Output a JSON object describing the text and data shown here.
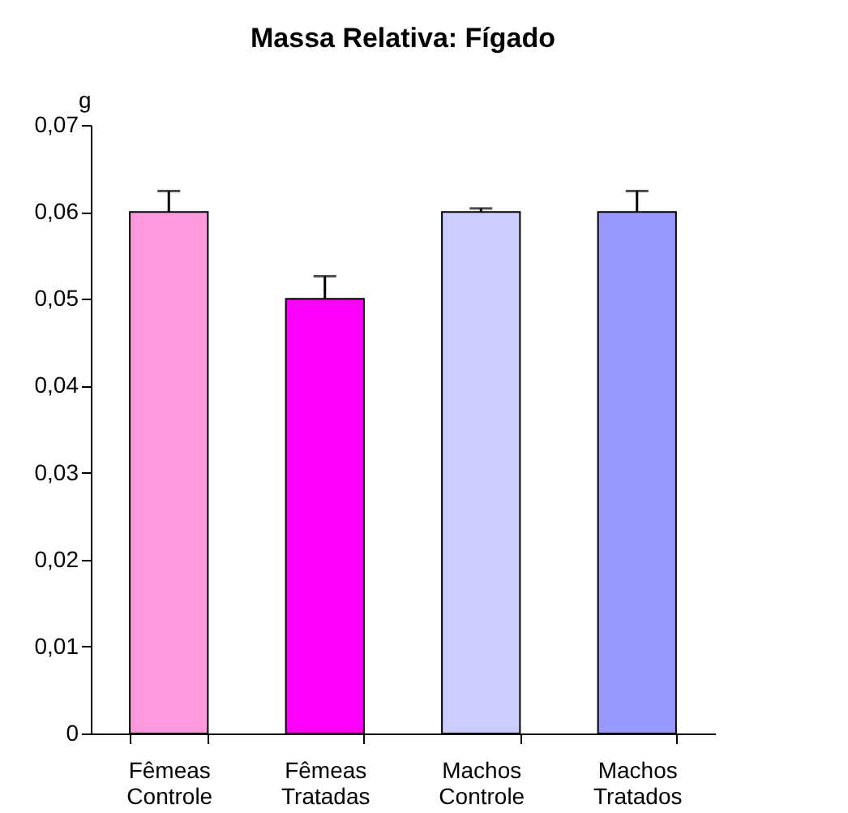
{
  "chart_data": {
    "type": "bar",
    "title": "Massa Relativa: Fígado",
    "ylabel": "g",
    "categories": [
      "Fêmeas Controle",
      "Fêmeas Tratadas",
      "Machos Controle",
      "Machos Tratados"
    ],
    "values": [
      0.06,
      0.05,
      0.06,
      0.06
    ],
    "colors": [
      "#ff99dd",
      "#ff00ff",
      "#ccccff",
      "#9999ff"
    ],
    "errors": [
      [
        0.06,
        0.0624
      ],
      [
        0.05,
        0.0526
      ],
      [
        0.06,
        0.0604
      ],
      [
        0.06,
        0.0624
      ]
    ],
    "ylim": [
      0,
      0.07
    ],
    "yticks": [
      {
        "value": 0,
        "label": "0"
      },
      {
        "value": 0.01,
        "label": "0,01"
      },
      {
        "value": 0.02,
        "label": "0,02"
      },
      {
        "value": 0.03,
        "label": "0,03"
      },
      {
        "value": 0.04,
        "label": "0,04"
      },
      {
        "value": 0.05,
        "label": "0,05"
      },
      {
        "value": 0.06,
        "label": "0,06"
      },
      {
        "value": 0.07,
        "label": "0,07"
      }
    ],
    "grid": false
  }
}
